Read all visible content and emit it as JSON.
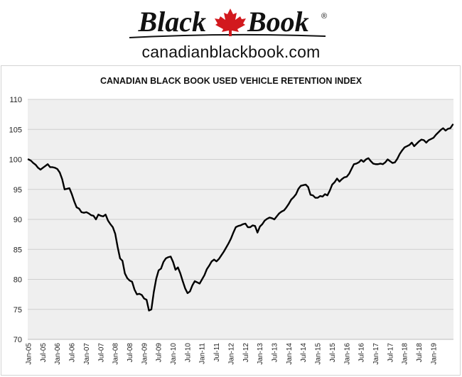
{
  "logo": {
    "left_text": "Black",
    "right_text": "Book",
    "registered": "®",
    "site": "canadianblackbook.com",
    "accent_color": "#d2191e"
  },
  "chart_data": {
    "type": "line",
    "title": "CANADIAN BLACK BOOK USED VEHICLE RETENTION INDEX",
    "xlabel": "",
    "ylabel": "",
    "ylim": [
      70,
      110
    ],
    "y_ticks": [
      70,
      75,
      80,
      85,
      90,
      95,
      100,
      105,
      110
    ],
    "x_ticks": [
      "Jan-05",
      "Jul-05",
      "Jan-06",
      "Jul-06",
      "Jan-07",
      "Jul-07",
      "Jan-08",
      "Jul-08",
      "Jan-09",
      "Jul-09",
      "Jan-10",
      "Jul-10",
      "Jan-11",
      "Jul-11",
      "Jan-12",
      "Jul-12",
      "Jan-13",
      "Jul-13",
      "Jan-14",
      "Jul-14",
      "Jan-15",
      "Jul-15",
      "Jan-16",
      "Jul-16",
      "Jan-17",
      "Jul-17",
      "Jan-18",
      "Jul-18",
      "Jan-19"
    ],
    "grid": true,
    "legend": "none",
    "line_color": "#000000",
    "plot_background": "#efefef",
    "series": [
      {
        "values": [
          100,
          99.8,
          99.4,
          99.1,
          98.6,
          98.3,
          98.6,
          98.9,
          99.2,
          98.7,
          98.7,
          98.6,
          98.4,
          97.8,
          96.7,
          95.0,
          95.1,
          95.2,
          94.2,
          93.0,
          92.0,
          91.8,
          91.2,
          91.1,
          91.2,
          91.0,
          90.7,
          90.6,
          90.0,
          90.8,
          90.6,
          90.5,
          90.8,
          89.8,
          89.2,
          88.7,
          87.6,
          85.4,
          83.5,
          83.1,
          81.0,
          80.2,
          79.8,
          79.6,
          78.3,
          77.5,
          77.6,
          77.4,
          76.8,
          76.6,
          74.8,
          75.0,
          77.9,
          80.1,
          81.5,
          81.8,
          82.9,
          83.5,
          83.7,
          83.8,
          82.9,
          81.6,
          82.0,
          81.0,
          79.7,
          78.5,
          77.7,
          78.0,
          79.0,
          79.7,
          79.5,
          79.3,
          80.0,
          80.7,
          81.7,
          82.3,
          83.0,
          83.3,
          83.0,
          83.4,
          84.0,
          84.6,
          85.3,
          86.0,
          86.8,
          87.8,
          88.7,
          88.9,
          89.0,
          89.2,
          89.3,
          88.7,
          88.7,
          89.0,
          88.9,
          87.8,
          88.8,
          89.2,
          89.8,
          90.1,
          90.3,
          90.2,
          90.0,
          90.5,
          91.0,
          91.3,
          91.5,
          92.0,
          92.6,
          93.3,
          93.7,
          94.2,
          95.1,
          95.6,
          95.7,
          95.8,
          95.4,
          94.1,
          94.0,
          93.6,
          93.6,
          93.9,
          93.8,
          94.2,
          94.0,
          94.8,
          95.8,
          96.2,
          96.8,
          96.3,
          96.7,
          97.0,
          97.1,
          97.6,
          98.4,
          99.2,
          99.3,
          99.5,
          99.9,
          99.6,
          100.0,
          100.2,
          99.7,
          99.3,
          99.2,
          99.2,
          99.3,
          99.2,
          99.5,
          100.0,
          99.7,
          99.4,
          99.5,
          100.1,
          100.9,
          101.5,
          102.0,
          102.2,
          102.4,
          102.8,
          102.2,
          102.6,
          103.0,
          103.3,
          103.2,
          102.8,
          103.2,
          103.4,
          103.6,
          104.1,
          104.5,
          104.9,
          105.2,
          104.8,
          105.1,
          105.2,
          105.8
        ]
      }
    ]
  }
}
